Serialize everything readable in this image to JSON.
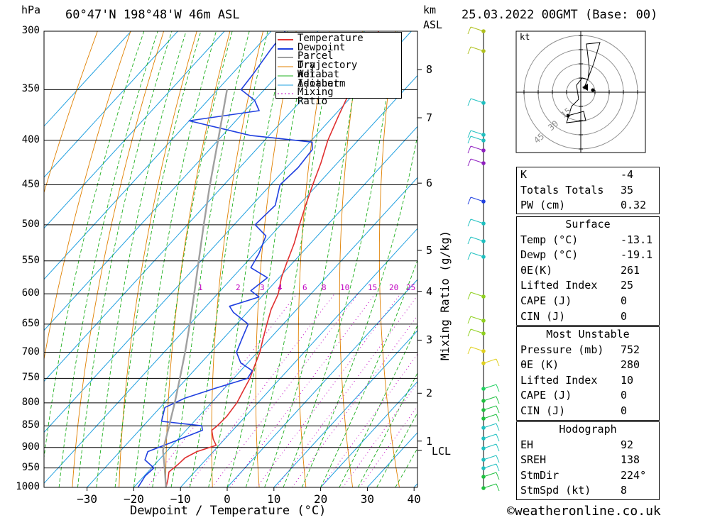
{
  "header": {
    "pressure_unit": "hPa",
    "location": "60°47'N  198°48'W  46m  ASL",
    "km_unit": "km",
    "asl_unit": "ASL",
    "datetime": "25.03.2022  00GMT  (Base: 00)"
  },
  "chart_data": {
    "type": "skew-t",
    "xlabel": "Dewpoint / Temperature (°C)",
    "right_axis_label": "Mixing Ratio (g/kg)",
    "pressure_levels": [
      300,
      350,
      400,
      450,
      500,
      550,
      600,
      650,
      700,
      750,
      800,
      850,
      900,
      950,
      1000
    ],
    "temperature_ticks": [
      -30,
      -20,
      -10,
      0,
      10,
      20,
      30,
      40
    ],
    "km_ticks": [
      {
        "label": "8",
        "p": 332
      },
      {
        "label": "7",
        "p": 377
      },
      {
        "label": "6",
        "p": 448
      },
      {
        "label": "5",
        "p": 535
      },
      {
        "label": "4",
        "p": 596
      },
      {
        "label": "3",
        "p": 678
      },
      {
        "label": "2",
        "p": 780
      },
      {
        "label": "1",
        "p": 885
      }
    ],
    "lcl": {
      "label": "LCL",
      "p": 907
    },
    "mixing_ratio_labels": [
      "1",
      "2",
      "3",
      "4",
      "6",
      "8",
      "10",
      "15",
      "20",
      "25"
    ],
    "legend": [
      "Temperature",
      "Dewpoint",
      "Parcel Trajectory",
      "Dry Adiabat",
      "Wet Adiabat",
      "Isotherm",
      "Mixing Ratio"
    ],
    "series": [
      {
        "name": "Temperature",
        "color": "#e03030",
        "points": [
          [
            1000,
            -13.1
          ],
          [
            980,
            -14.2
          ],
          [
            960,
            -15.5
          ],
          [
            940,
            -15.0
          ],
          [
            925,
            -14.8
          ],
          [
            910,
            -13.5
          ],
          [
            895,
            -10.6
          ],
          [
            880,
            -12.5
          ],
          [
            860,
            -14.5
          ],
          [
            850,
            -14.2
          ],
          [
            830,
            -14.0
          ],
          [
            800,
            -14.5
          ],
          [
            775,
            -15.5
          ],
          [
            750,
            -16.5
          ],
          [
            725,
            -18.0
          ],
          [
            700,
            -19.5
          ],
          [
            675,
            -21.5
          ],
          [
            650,
            -23.5
          ],
          [
            625,
            -25.5
          ],
          [
            600,
            -27.0
          ],
          [
            575,
            -29.5
          ],
          [
            550,
            -31.5
          ],
          [
            525,
            -33.5
          ],
          [
            500,
            -36.0
          ],
          [
            475,
            -38.5
          ],
          [
            450,
            -41.0
          ],
          [
            425,
            -43.5
          ],
          [
            400,
            -46.5
          ],
          [
            375,
            -49.0
          ],
          [
            350,
            -51.5
          ],
          [
            330,
            -54.0
          ],
          [
            315,
            -55.5
          ],
          [
            300,
            -57.0
          ]
        ]
      },
      {
        "name": "Dewpoint",
        "color": "#2040e0",
        "points": [
          [
            1000,
            -19.1
          ],
          [
            970,
            -19.8
          ],
          [
            950,
            -19.5
          ],
          [
            930,
            -23.0
          ],
          [
            910,
            -24.0
          ],
          [
            890,
            -21.0
          ],
          [
            860,
            -16.5
          ],
          [
            850,
            -17.5
          ],
          [
            840,
            -27.0
          ],
          [
            810,
            -29.0
          ],
          [
            790,
            -26.5
          ],
          [
            770,
            -22.0
          ],
          [
            750,
            -17.0
          ],
          [
            735,
            -17.5
          ],
          [
            720,
            -21.5
          ],
          [
            700,
            -24.5
          ],
          [
            675,
            -26.0
          ],
          [
            650,
            -27.5
          ],
          [
            630,
            -33.0
          ],
          [
            620,
            -35.0
          ],
          [
            605,
            -30.5
          ],
          [
            595,
            -33.5
          ],
          [
            575,
            -32.5
          ],
          [
            560,
            -38.0
          ],
          [
            540,
            -39.0
          ],
          [
            515,
            -41.0
          ],
          [
            500,
            -45.5
          ],
          [
            475,
            -45.0
          ],
          [
            450,
            -48.0
          ],
          [
            430,
            -47.5
          ],
          [
            410,
            -48.0
          ],
          [
            402,
            -49.5
          ],
          [
            395,
            -64.0
          ],
          [
            380,
            -80.0
          ],
          [
            370,
            -67.0
          ],
          [
            360,
            -70.0
          ],
          [
            350,
            -75.0
          ],
          [
            335,
            -75.5
          ],
          [
            315,
            -76.5
          ],
          [
            300,
            -77.0
          ]
        ]
      },
      {
        "name": "Parcel Trajectory",
        "color": "#a0a0a0",
        "points": [
          [
            1000,
            -13.1
          ],
          [
            950,
            -17.2
          ],
          [
            907,
            -21.0
          ],
          [
            850,
            -24.5
          ],
          [
            800,
            -27.8
          ],
          [
            750,
            -31.5
          ],
          [
            700,
            -35.5
          ],
          [
            650,
            -40.0
          ],
          [
            600,
            -45.0
          ],
          [
            550,
            -50.5
          ],
          [
            500,
            -56.5
          ],
          [
            450,
            -63.0
          ],
          [
            400,
            -70.0
          ],
          [
            350,
            -78.0
          ]
        ]
      }
    ],
    "hodograph": {
      "unit": "kt",
      "ring_labels": [
        "15",
        "30",
        "45"
      ]
    },
    "grid": true
  },
  "indices": [
    {
      "label": "K",
      "value": "-4"
    },
    {
      "label": "Totals Totals",
      "value": "35"
    },
    {
      "label": "PW (cm)",
      "value": "0.32"
    }
  ],
  "surface": {
    "title": "Surface",
    "rows": [
      {
        "label": "Temp (°C)",
        "value": "-13.1"
      },
      {
        "label": "Dewp (°C)",
        "value": "-19.1"
      },
      {
        "label": "θE(K)",
        "value": "261"
      },
      {
        "label": "Lifted Index",
        "value": "25"
      },
      {
        "label": "CAPE (J)",
        "value": "0"
      },
      {
        "label": "CIN (J)",
        "value": "0"
      }
    ]
  },
  "most_unstable": {
    "title": "Most Unstable",
    "rows": [
      {
        "label": "Pressure (mb)",
        "value": "752"
      },
      {
        "label": "θE (K)",
        "value": "280"
      },
      {
        "label": "Lifted Index",
        "value": "10"
      },
      {
        "label": "CAPE (J)",
        "value": "0"
      },
      {
        "label": "CIN (J)",
        "value": "0"
      }
    ]
  },
  "hodograph_stats": {
    "title": "Hodograph",
    "rows": [
      {
        "label": "EH",
        "value": "92"
      },
      {
        "label": "SREH",
        "value": "138"
      },
      {
        "label": "StmDir",
        "value": "224°"
      },
      {
        "label": "StmSpd (kt)",
        "value": "8"
      }
    ]
  },
  "footer": {
    "credit": "©weatheronline.co.uk"
  }
}
